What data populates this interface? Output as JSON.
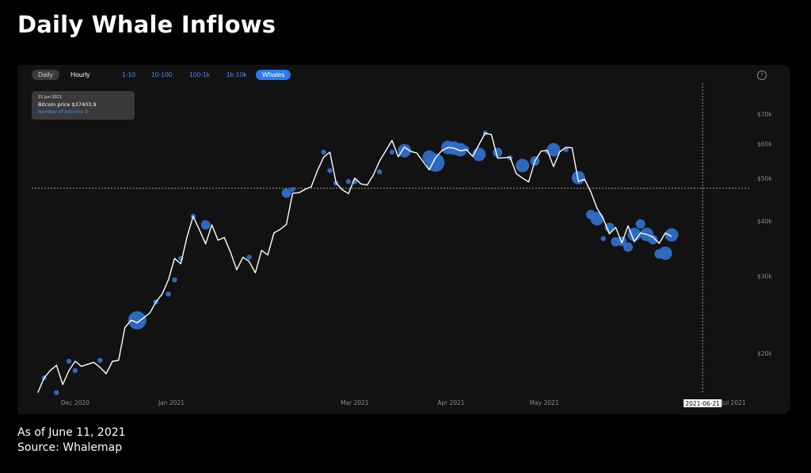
{
  "page": {
    "title": "Daily Whale Inflows",
    "footer_date": "As of June 11, 2021",
    "footer_source": "Source: Whalemap"
  },
  "toolbar": {
    "daily": "Daily",
    "hourly": "Hourly",
    "buckets": [
      "1-10",
      "10-100",
      "100-1k",
      "1k-10k",
      "Whales"
    ],
    "active_bucket": "Whales",
    "help_symbol": "?"
  },
  "tooltip": {
    "date": "21 Jun 2021",
    "price": "Bitcoin price $37403.9",
    "count": "Number of bitcoins 0"
  },
  "colors": {
    "background": "#000000",
    "panel": "#121212",
    "price_line": "#ffffff",
    "whale_bubble": "#2f6fc7",
    "accent": "#2a7cf0",
    "axis_text": "#8a8a8a"
  },
  "chart_data": {
    "type": "line",
    "title": "",
    "xlabel": "",
    "ylabel": "",
    "y_scale": "log",
    "ylim": [
      16000,
      78000
    ],
    "xlim": [
      "2020-11-17",
      "2021-07-06"
    ],
    "y_ticks": [
      20000,
      30000,
      40000,
      50000,
      60000,
      70000
    ],
    "y_tick_labels": [
      "$20k",
      "$30k",
      "$40k",
      "$50k",
      "$60k",
      "$70k"
    ],
    "x_ticks": [
      "2020-12-01",
      "2021-01-01",
      "2021-03-01",
      "2021-04-01",
      "2021-05-01",
      "2021-07-01"
    ],
    "x_tick_labels": [
      "Dec 2020",
      "Jan 2021",
      "Mar 2021",
      "Apr 2021",
      "May 2021",
      "Jul 2021"
    ],
    "cursor": {
      "date": "2021-06-21",
      "label": "2021-06-21",
      "price": 47500
    },
    "grid": false,
    "series": [
      {
        "type": "line",
        "x": [
          "2020-11-19",
          "2020-11-21",
          "2020-11-23",
          "2020-11-25",
          "2020-11-27",
          "2020-11-29",
          "2020-12-01",
          "2020-12-03",
          "2020-12-05",
          "2020-12-07",
          "2020-12-09",
          "2020-12-11",
          "2020-12-13",
          "2020-12-15",
          "2020-12-17",
          "2020-12-19",
          "2020-12-21",
          "2020-12-23",
          "2020-12-25",
          "2020-12-27",
          "2020-12-29",
          "2020-12-31",
          "2021-01-02",
          "2021-01-04",
          "2021-01-06",
          "2021-01-08",
          "2021-01-10",
          "2021-01-12",
          "2021-01-14",
          "2021-01-16",
          "2021-01-18",
          "2021-01-20",
          "2021-01-22",
          "2021-01-24",
          "2021-01-26",
          "2021-01-28",
          "2021-01-30",
          "2021-02-01",
          "2021-02-03",
          "2021-02-05",
          "2021-02-07",
          "2021-02-09",
          "2021-02-11",
          "2021-02-13",
          "2021-02-15",
          "2021-02-17",
          "2021-02-19",
          "2021-02-21",
          "2021-02-23",
          "2021-02-25",
          "2021-02-27",
          "2021-03-01",
          "2021-03-03",
          "2021-03-05",
          "2021-03-07",
          "2021-03-09",
          "2021-03-11",
          "2021-03-13",
          "2021-03-15",
          "2021-03-17",
          "2021-03-19",
          "2021-03-21",
          "2021-03-23",
          "2021-03-25",
          "2021-03-27",
          "2021-03-29",
          "2021-03-31",
          "2021-04-02",
          "2021-04-04",
          "2021-04-06",
          "2021-04-08",
          "2021-04-10",
          "2021-04-12",
          "2021-04-14",
          "2021-04-16",
          "2021-04-18",
          "2021-04-20",
          "2021-04-22",
          "2021-04-24",
          "2021-04-26",
          "2021-04-28",
          "2021-04-30",
          "2021-05-02",
          "2021-05-04",
          "2021-05-06",
          "2021-05-08",
          "2021-05-10",
          "2021-05-12",
          "2021-05-14",
          "2021-05-16",
          "2021-05-18",
          "2021-05-20",
          "2021-05-22",
          "2021-05-24",
          "2021-05-26",
          "2021-05-28",
          "2021-05-30",
          "2021-06-01",
          "2021-06-03",
          "2021-06-05",
          "2021-06-07",
          "2021-06-09",
          "2021-06-11"
        ],
        "y": [
          16300,
          17600,
          18300,
          18800,
          17000,
          18300,
          19200,
          18700,
          18900,
          19100,
          18600,
          18000,
          19200,
          19300,
          22900,
          23800,
          23500,
          24100,
          24700,
          26200,
          27300,
          29400,
          32900,
          32000,
          36800,
          41000,
          38200,
          35500,
          39200,
          36200,
          36700,
          34000,
          31000,
          33100,
          32400,
          30500,
          34300,
          33500,
          37600,
          38300,
          39300,
          46300,
          46400,
          47200,
          47900,
          52100,
          55900,
          57400,
          48800,
          47100,
          46200,
          50100,
          48600,
          48300,
          50900,
          54800,
          57800,
          61000,
          56000,
          58900,
          57600,
          57100,
          54600,
          52300,
          55700,
          57800,
          58800,
          58600,
          57800,
          58100,
          56100,
          59700,
          63400,
          62900,
          55600,
          55700,
          55900,
          51300,
          50100,
          49100,
          54800,
          57700,
          57900,
          53200,
          57500,
          58800,
          58700,
          49200,
          49800,
          46600,
          42800,
          40500,
          37400,
          38700,
          35700,
          39000,
          35900,
          37600,
          37300,
          36800,
          35600,
          37600,
          36900
        ]
      },
      {
        "name": "Whales",
        "type": "scatter",
        "x": [
          "2020-11-21",
          "2020-11-25",
          "2020-11-29",
          "2020-12-01",
          "2020-12-09",
          "2020-12-21",
          "2020-12-27",
          "2020-12-31",
          "2021-01-02",
          "2021-01-04",
          "2021-01-08",
          "2021-01-12",
          "2021-01-26",
          "2021-02-07",
          "2021-02-09",
          "2021-02-19",
          "2021-02-21",
          "2021-02-23",
          "2021-02-27",
          "2021-03-01",
          "2021-03-09",
          "2021-03-13",
          "2021-03-17",
          "2021-03-25",
          "2021-03-27",
          "2021-03-31",
          "2021-04-02",
          "2021-04-04",
          "2021-04-06",
          "2021-04-10",
          "2021-04-12",
          "2021-04-16",
          "2021-04-20",
          "2021-04-24",
          "2021-04-28",
          "2021-05-02",
          "2021-05-04",
          "2021-05-08",
          "2021-05-12",
          "2021-05-16",
          "2021-05-18",
          "2021-05-20",
          "2021-05-22",
          "2021-05-24",
          "2021-05-26",
          "2021-05-28",
          "2021-05-30",
          "2021-06-01",
          "2021-06-03",
          "2021-06-05",
          "2021-06-07",
          "2021-06-09",
          "2021-06-11"
        ],
        "y": [
          17600,
          16300,
          19200,
          18300,
          19300,
          23800,
          26200,
          27300,
          29400,
          32900,
          41000,
          39200,
          33100,
          46300,
          47200,
          57400,
          52100,
          48800,
          49200,
          49200,
          51800,
          57400,
          57800,
          55900,
          54300,
          58800,
          58600,
          58100,
          58400,
          56700,
          63400,
          57300,
          55700,
          53500,
          54800,
          57600,
          58100,
          58100,
          50200,
          41400,
          40500,
          36500,
          38700,
          35900,
          36000,
          34900,
          37300,
          39400,
          37300,
          36300,
          33700,
          33800,
          37200
        ],
        "size": [
          1,
          1,
          1,
          1,
          1,
          4,
          1,
          1,
          1,
          1,
          1,
          2,
          1,
          2,
          1,
          1,
          1,
          1,
          1,
          1,
          1,
          1,
          3,
          3,
          4,
          3,
          3,
          3,
          1,
          3,
          1,
          2,
          1,
          3,
          2,
          1,
          3,
          1,
          3,
          2,
          3,
          1,
          2,
          2,
          2,
          2,
          3,
          2,
          3,
          2,
          2,
          3,
          3
        ]
      }
    ]
  }
}
